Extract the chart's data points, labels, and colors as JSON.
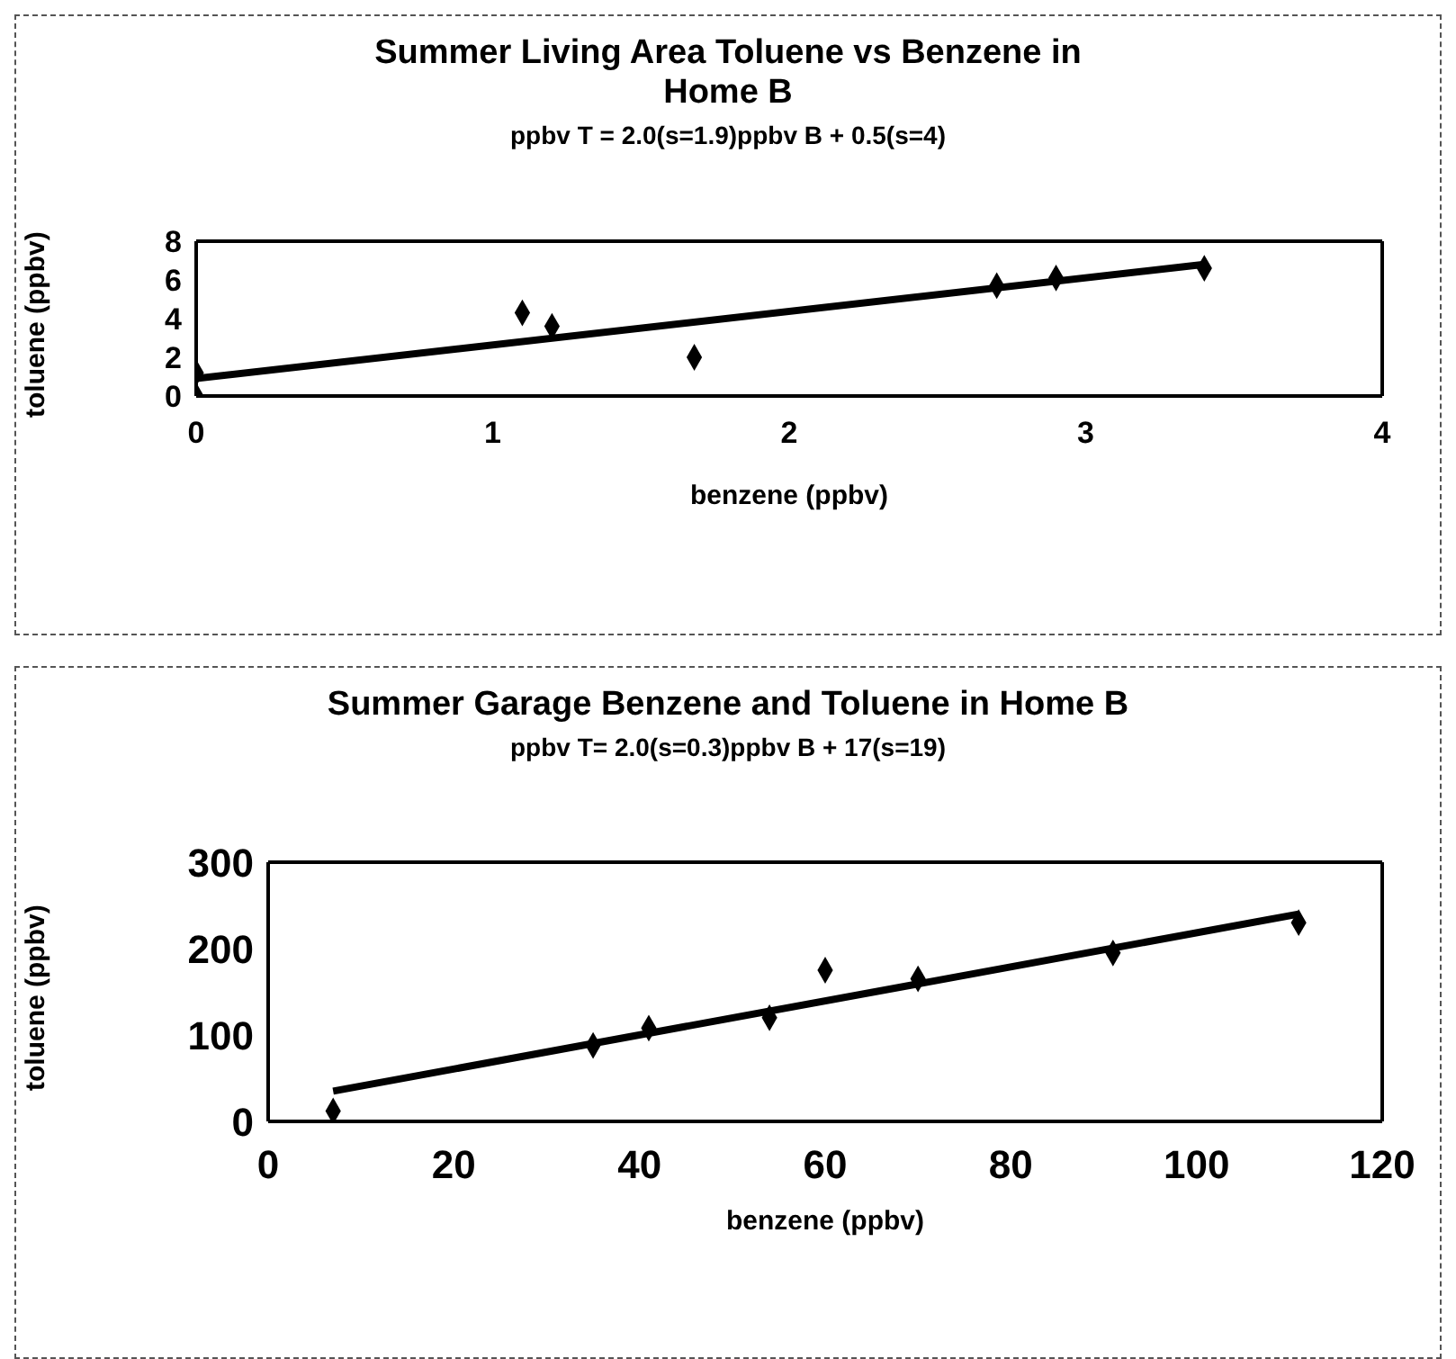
{
  "chart_data": [
    {
      "type": "scatter",
      "title": "Summer Living Area Toluene vs Benzene in Home B",
      "subtitle": "ppbv T = 2.0(s=1.9)ppbv B + 0.5(s=4)",
      "xlabel": "benzene (ppbv)",
      "ylabel": "toluene (ppbv)",
      "xlim": [
        0,
        4
      ],
      "xticks": [
        0,
        1,
        2,
        3,
        4
      ],
      "ylim": [
        0,
        8
      ],
      "yticks": [
        0,
        2,
        4,
        6,
        8
      ],
      "grid": false,
      "legend": false,
      "series": [
        {
          "type": "scatter",
          "color": "#000000",
          "marker": "diamond",
          "x": [
            0,
            0,
            1.1,
            1.2,
            1.68,
            2.7,
            2.9,
            3.4
          ],
          "values": [
            0,
            1.2,
            4.3,
            3.6,
            2.0,
            5.7,
            6.1,
            6.6
          ]
        },
        {
          "type": "line",
          "color": "#000000",
          "marker": "none",
          "x": [
            0,
            3.4
          ],
          "values": [
            0.9,
            6.8
          ]
        }
      ]
    },
    {
      "type": "scatter",
      "title": "Summer Garage Benzene and Toluene in Home B",
      "subtitle": "ppbv T= 2.0(s=0.3)ppbv B + 17(s=19)",
      "xlabel": "benzene (ppbv)",
      "ylabel": "toluene (ppbv)",
      "xlim": [
        0,
        120
      ],
      "xticks": [
        0,
        20,
        40,
        60,
        80,
        100,
        120
      ],
      "ylim": [
        0,
        300
      ],
      "yticks": [
        0,
        100,
        200,
        300
      ],
      "grid": false,
      "legend": false,
      "series": [
        {
          "type": "scatter",
          "color": "#000000",
          "marker": "diamond",
          "x": [
            7,
            35,
            41,
            54,
            60,
            70,
            91,
            111
          ],
          "values": [
            12,
            88,
            108,
            120,
            175,
            165,
            195,
            230
          ]
        },
        {
          "type": "line",
          "color": "#000000",
          "marker": "none",
          "x": [
            7,
            111
          ],
          "values": [
            35,
            240
          ]
        }
      ]
    }
  ]
}
